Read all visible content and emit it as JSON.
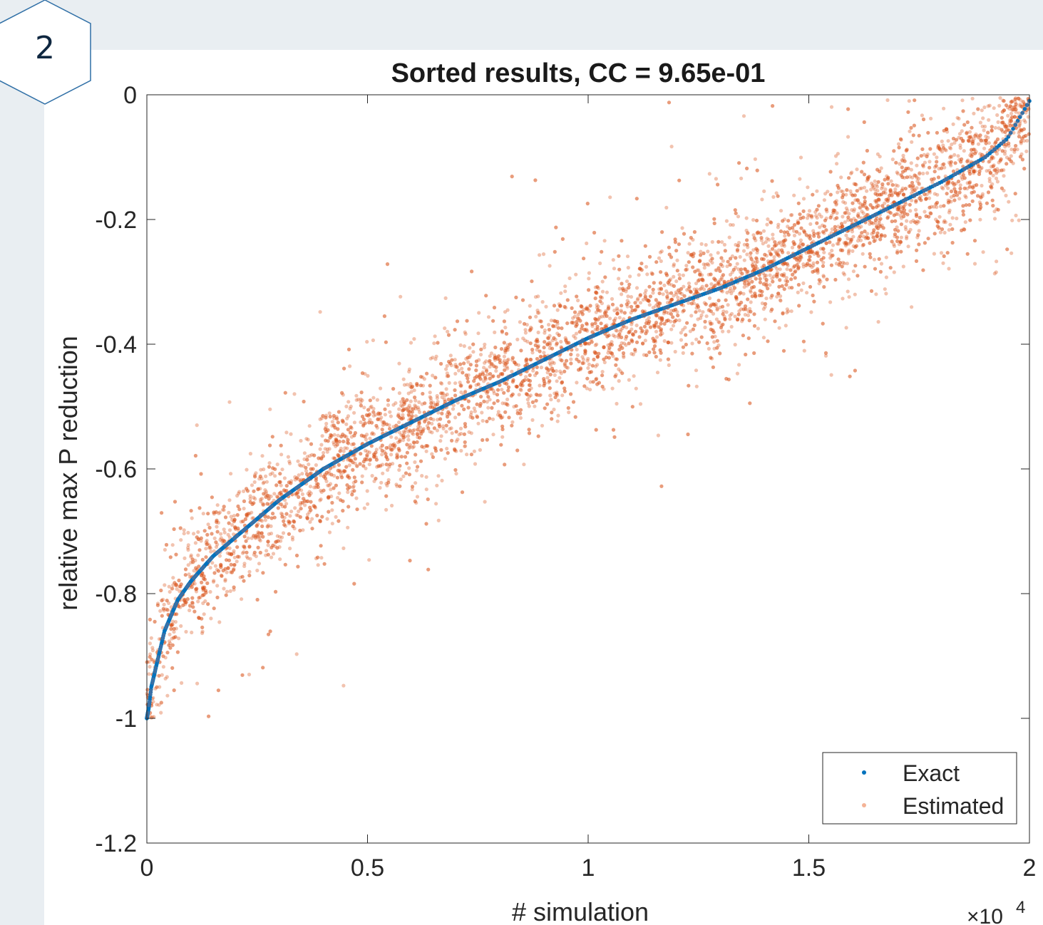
{
  "badge": {
    "number": "2"
  },
  "colors": {
    "exact": "#0072BD",
    "estimated": "#D95319",
    "axis": "#262626",
    "background": "#e9eef2"
  },
  "chart_data": {
    "type": "scatter",
    "title": "Sorted results, CC = 9.65e-01",
    "xlabel": "# simulation",
    "ylabel": "relative max P reduction",
    "x_exponent_label": "×10",
    "x_exponent_power": "4",
    "xlim": [
      0,
      20000
    ],
    "ylim": [
      -1.2,
      0
    ],
    "x_ticks": [
      0,
      5000,
      10000,
      15000,
      20000
    ],
    "x_tick_labels": [
      "0",
      "0.5",
      "1",
      "1.5",
      "2"
    ],
    "y_ticks": [
      0,
      -0.2,
      -0.4,
      -0.6,
      -0.8,
      -1,
      -1.2
    ],
    "y_tick_labels": [
      "0",
      "-0.2",
      "-0.4",
      "-0.6",
      "-0.8",
      "-1",
      "-1.2"
    ],
    "grid": false,
    "legend_position": "bottom-right",
    "series": [
      {
        "name": "Exact",
        "marker": "dot",
        "approx_curve": [
          [
            0,
            -1.0
          ],
          [
            50,
            -0.98
          ],
          [
            100,
            -0.95
          ],
          [
            200,
            -0.92
          ],
          [
            400,
            -0.86
          ],
          [
            700,
            -0.81
          ],
          [
            1000,
            -0.78
          ],
          [
            1500,
            -0.74
          ],
          [
            2000,
            -0.71
          ],
          [
            3000,
            -0.65
          ],
          [
            4000,
            -0.6
          ],
          [
            5000,
            -0.56
          ],
          [
            6000,
            -0.525
          ],
          [
            7000,
            -0.49
          ],
          [
            8000,
            -0.46
          ],
          [
            9000,
            -0.425
          ],
          [
            10000,
            -0.39
          ],
          [
            11000,
            -0.36
          ],
          [
            12000,
            -0.335
          ],
          [
            13000,
            -0.31
          ],
          [
            14000,
            -0.28
          ],
          [
            15000,
            -0.245
          ],
          [
            16000,
            -0.21
          ],
          [
            17000,
            -0.175
          ],
          [
            18000,
            -0.14
          ],
          [
            19000,
            -0.1
          ],
          [
            19500,
            -0.07
          ],
          [
            20000,
            -0.01
          ]
        ]
      },
      {
        "name": "Estimated",
        "marker": "dot",
        "approx_count": 20000,
        "description_spread": "points scattered around the Exact curve, spread about ±0.1 to ±0.2"
      }
    ]
  }
}
